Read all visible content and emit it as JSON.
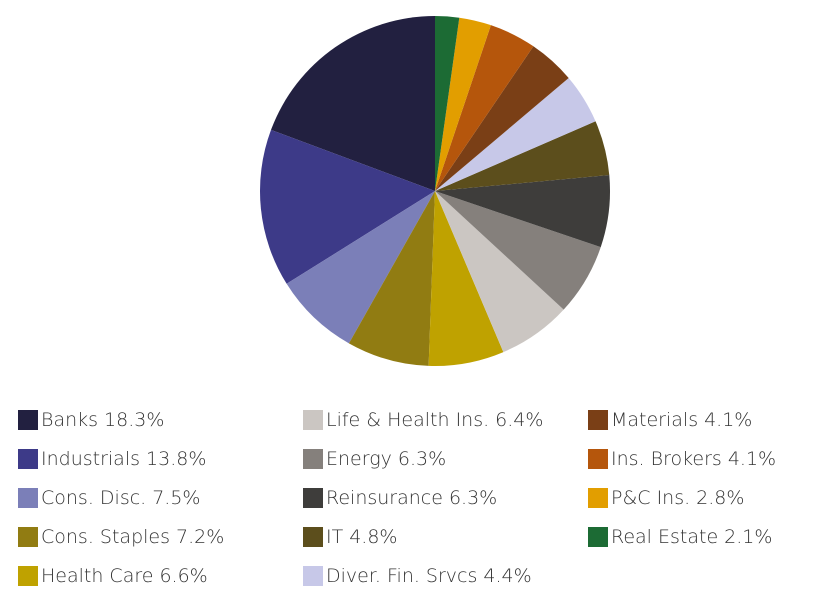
{
  "chart_data": {
    "type": "pie",
    "categories": [
      "Banks",
      "Industrials",
      "Cons. Disc.",
      "Cons. Staples",
      "Health Care",
      "Life & Health Ins.",
      "Energy",
      "Reinsurance",
      "IT",
      "Diver. Fin. Srvcs",
      "Materials",
      "Ins. Brokers",
      "P&C Ins.",
      "Real Estate"
    ],
    "values": [
      18.3,
      13.8,
      7.5,
      7.2,
      6.6,
      6.4,
      6.3,
      6.3,
      4.8,
      4.4,
      4.1,
      4.1,
      2.8,
      2.1
    ],
    "value_labels": [
      "18.3%",
      "13.8%",
      "7.5%",
      "7.2%",
      "6.6%",
      "6.4%",
      "6.3%",
      "6.3%",
      "4.8%",
      "4.4%",
      "4.1%",
      "4.1%",
      "2.8%",
      "2.1%"
    ],
    "colors": [
      "#222040",
      "#3d3a88",
      "#7b7fb8",
      "#917c12",
      "#bfa200",
      "#cbc6c2",
      "#85807c",
      "#3e3d3b",
      "#5c4e1c",
      "#c7c8e8",
      "#7a3f16",
      "#b5560c",
      "#e29e00",
      "#1c6b34"
    ]
  }
}
